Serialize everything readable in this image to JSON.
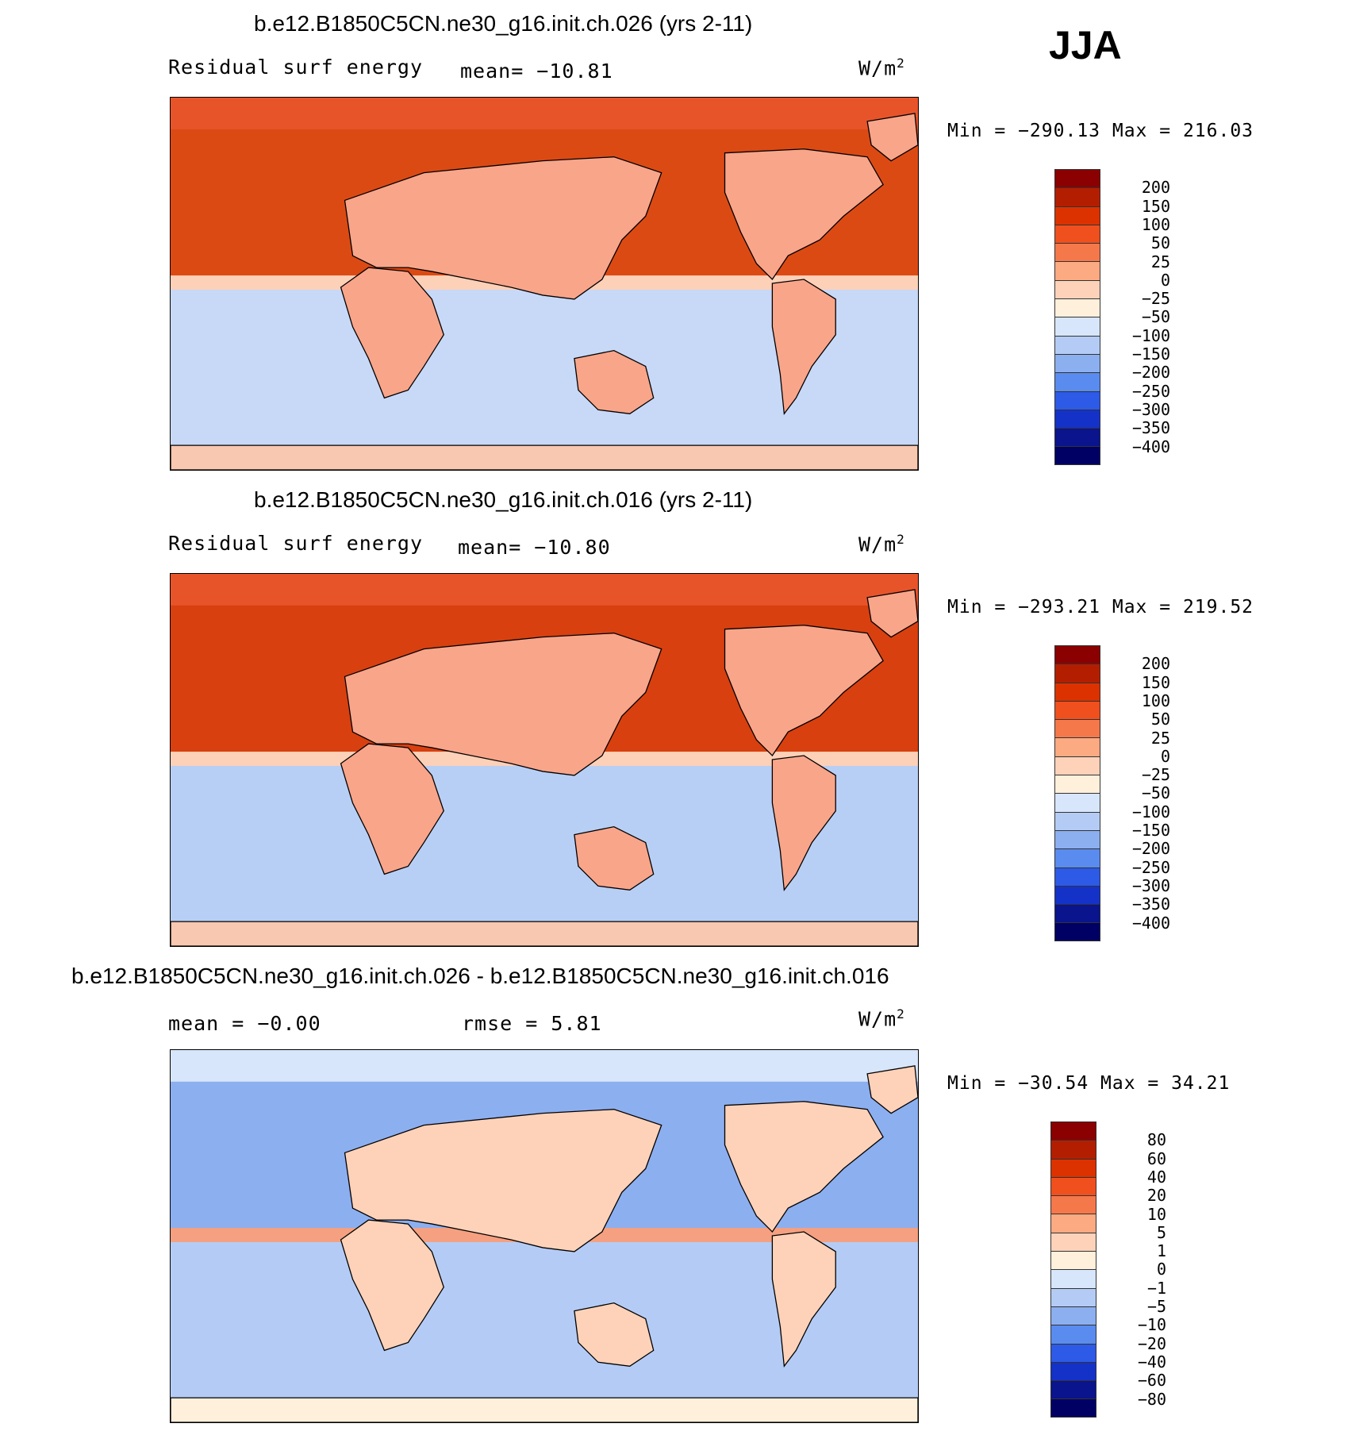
{
  "season": "JJA",
  "panels": [
    {
      "title": "b.e12.B1850C5CN.ne30_g16.init.ch.026 (yrs 2-11)",
      "variable": "Residual surf energy",
      "mean_label": "mean= −10.81",
      "units": "W/m",
      "units_exp": "2",
      "minmax": "Min = −290.13 Max = 216.03",
      "colorbar": {
        "labels": [
          "200",
          "150",
          "100",
          "50",
          "25",
          "0",
          "−25",
          "−50",
          "−100",
          "−150",
          "−200",
          "−250",
          "−300",
          "−350",
          "−400"
        ],
        "colors": [
          "#8b0000",
          "#b41e00",
          "#dc3200",
          "#f0501e",
          "#f5784b",
          "#fbaa82",
          "#fdd2b9",
          "#fff0dc",
          "#d7e6fa",
          "#b4ccf5",
          "#8caff0",
          "#5a8cf0",
          "#2d5ae6",
          "#1432c8",
          "#0a148c",
          "#000064"
        ]
      },
      "map": {
        "north": "#e8542a",
        "ocean_north": "#dc4a14",
        "land": "#f9a58a",
        "tropics": "#fdd0b8",
        "south": "#c7d9f7",
        "antarctica": "#f9c8b0"
      }
    },
    {
      "title": "b.e12.B1850C5CN.ne30_g16.init.ch.016 (yrs 2-11)",
      "variable": "Residual surf energy",
      "mean_label": "mean= −10.80",
      "units": "W/m",
      "units_exp": "2",
      "minmax": "Min = −293.21 Max = 219.52",
      "colorbar": {
        "labels": [
          "200",
          "150",
          "100",
          "50",
          "25",
          "0",
          "−25",
          "−50",
          "−100",
          "−150",
          "−200",
          "−250",
          "−300",
          "−350",
          "−400"
        ],
        "colors": [
          "#8b0000",
          "#b41e00",
          "#dc3200",
          "#f0501e",
          "#f5784b",
          "#fbaa82",
          "#fdd2b9",
          "#fff0dc",
          "#d7e6fa",
          "#b4ccf5",
          "#8caff0",
          "#5a8cf0",
          "#2d5ae6",
          "#1432c8",
          "#0a148c",
          "#000064"
        ]
      },
      "map": {
        "north": "#e8542a",
        "ocean_north": "#d84010",
        "land": "#f9a58a",
        "tropics": "#fdd0b8",
        "south": "#b8cff5",
        "antarctica": "#f9c8b0"
      }
    },
    {
      "title": "b.e12.B1850C5CN.ne30_g16.init.ch.026 - b.e12.B1850C5CN.ne30_g16.init.ch.016",
      "mean_label": "mean =   −0.00",
      "rmse_label": "rmse =    5.81",
      "units": "W/m",
      "units_exp": "2",
      "minmax": "Min = −30.54 Max =  34.21",
      "colorbar": {
        "labels": [
          "80",
          "60",
          "40",
          "20",
          "10",
          "5",
          "1",
          "0",
          "−1",
          "−5",
          "−10",
          "−20",
          "−40",
          "−60",
          "−80"
        ],
        "colors": [
          "#8b0000",
          "#b41e00",
          "#dc3200",
          "#f0501e",
          "#f5784b",
          "#fbaa82",
          "#fdd2b9",
          "#fff0dc",
          "#d7e6fa",
          "#b4ccf5",
          "#8caff0",
          "#5a8cf0",
          "#2d5ae6",
          "#1432c8",
          "#0a148c",
          "#000064"
        ]
      },
      "map": {
        "north": "#d7e6fa",
        "ocean_north": "#8caff0",
        "land": "#fdd2b9",
        "tropics": "#f5a080",
        "south": "#b4ccf5",
        "antarctica": "#fff0dc"
      }
    }
  ]
}
